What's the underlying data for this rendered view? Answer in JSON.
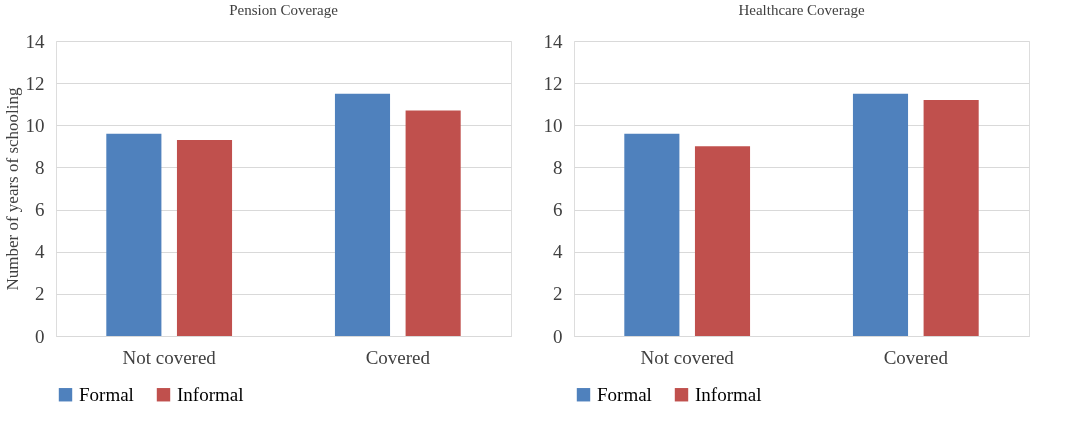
{
  "chart_data": [
    {
      "type": "bar",
      "title": "Pension Coverage",
      "ylabel": "Number of years of schooling",
      "categories": [
        "Not covered",
        "Covered"
      ],
      "series": [
        {
          "name": "Formal",
          "color": "#4f81bd",
          "values": [
            9.6,
            11.5
          ]
        },
        {
          "name": "Informal",
          "color": "#c0504d",
          "values": [
            9.3,
            10.7
          ]
        }
      ],
      "ylim": [
        0,
        14
      ],
      "yticks": [
        0,
        2,
        4,
        6,
        8,
        10,
        12,
        14
      ],
      "grid": "y",
      "legend": "bottom"
    },
    {
      "type": "bar",
      "title": "Healthcare Coverage",
      "categories": [
        "Not covered",
        "Covered"
      ],
      "series": [
        {
          "name": "Formal",
          "color": "#4f81bd",
          "values": [
            9.6,
            11.5
          ]
        },
        {
          "name": "Informal",
          "color": "#c0504d",
          "values": [
            9.0,
            11.2
          ]
        }
      ],
      "ylim": [
        0,
        14
      ],
      "yticks": [
        0,
        2,
        4,
        6,
        8,
        10,
        12,
        14
      ],
      "grid": "y",
      "legend": "bottom"
    }
  ]
}
